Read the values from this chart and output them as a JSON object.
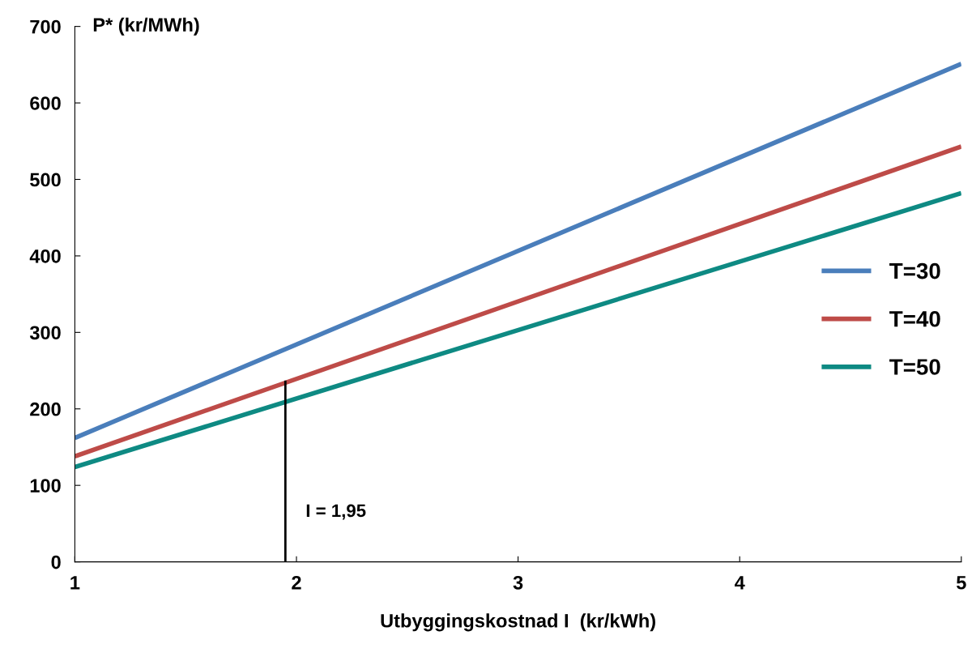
{
  "chart_data": {
    "type": "line",
    "ylabel": "P* (kr/MWh)",
    "xlabel": "Utbyggingskostnad I  (kr/kWh)",
    "xlim": [
      1,
      5
    ],
    "ylim": [
      0,
      700
    ],
    "xticks": [
      1,
      2,
      3,
      4,
      5
    ],
    "yticks": [
      0,
      100,
      200,
      300,
      400,
      500,
      600,
      700
    ],
    "grid": false,
    "legend": "center right",
    "marker": "none",
    "line_style": "solid",
    "series": [
      {
        "name": "T=30",
        "color": "#4a7ebb",
        "x": [
          1,
          5
        ],
        "values": [
          162,
          651
        ]
      },
      {
        "name": "T=40",
        "color": "#be4b48",
        "x": [
          1,
          5
        ],
        "values": [
          138,
          543
        ]
      },
      {
        "name": "T=50",
        "color": "#0e8a83",
        "x": [
          1,
          5
        ],
        "values": [
          124,
          482
        ]
      },
      {
        "color": "#000000",
        "x": [
          1.95,
          1.95
        ],
        "values": [
          0,
          237
        ]
      }
    ],
    "annotations": [
      {
        "text": "I = 1,95",
        "x": 1.95,
        "y": 0
      }
    ]
  }
}
